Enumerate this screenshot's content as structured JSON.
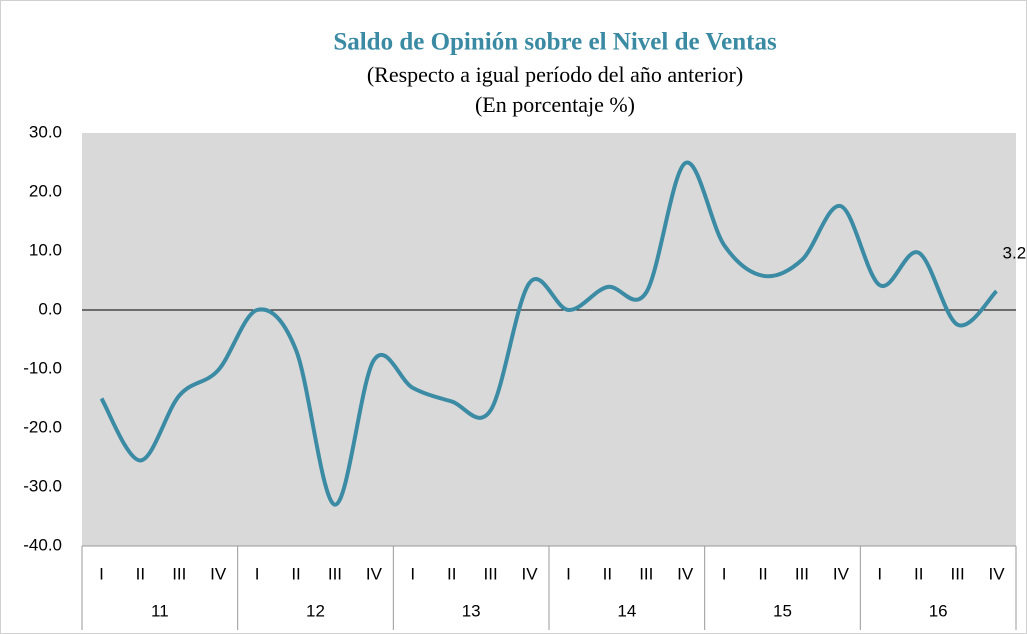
{
  "chart_data": {
    "type": "line",
    "title": "Saldo de Opinión sobre el Nivel de Ventas",
    "subtitle": [
      "(Respecto a igual período del año anterior)",
      "(En porcentaje %)"
    ],
    "categories": [
      "I",
      "II",
      "III",
      "IV",
      "I",
      "II",
      "III",
      "IV",
      "I",
      "II",
      "III",
      "IV",
      "I",
      "II",
      "III",
      "IV",
      "I",
      "II",
      "III",
      "IV",
      "I",
      "II",
      "III",
      "IV"
    ],
    "groups": [
      "11",
      "12",
      "13",
      "14",
      "15",
      "16"
    ],
    "series": [
      {
        "color": "#3b8ba5",
        "values": [
          -15,
          -25.5,
          -14.5,
          -10.2,
          0,
          -6.8,
          -33,
          -8.5,
          -13.2,
          -15.5,
          -17,
          4.6,
          0,
          3.9,
          3,
          24.9,
          11,
          5.8,
          8.5,
          17.6,
          4.2,
          9.7,
          -2.5,
          3.2
        ]
      }
    ],
    "labeled_point": 23,
    "ylim": [
      -40,
      30
    ],
    "yticks": [
      {
        "value": -40,
        "label": "-40.0"
      },
      {
        "value": -30,
        "label": "-30.0"
      },
      {
        "value": -20,
        "label": "-20.0"
      },
      {
        "value": -10,
        "label": "-10.0"
      },
      {
        "value": 0,
        "label": "0.0"
      },
      {
        "value": 10,
        "label": "10.0"
      },
      {
        "value": 20,
        "label": "20.0"
      },
      {
        "value": 30,
        "label": "30.0"
      }
    ],
    "plot_background": "#d9d9d9"
  }
}
